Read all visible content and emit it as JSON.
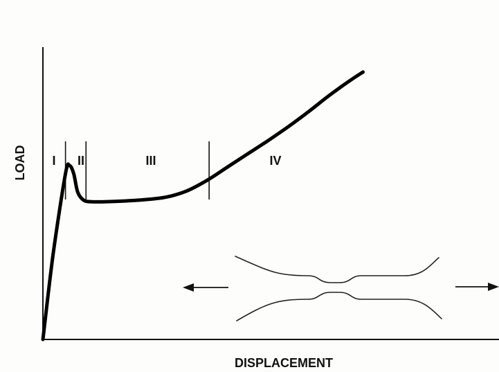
{
  "chart_data": {
    "type": "line",
    "xlabel": "DISPLACEMENT",
    "ylabel": "LOAD",
    "xlim": [
      0,
      100
    ],
    "ylim": [
      0,
      100
    ],
    "ticks": false,
    "grid": false,
    "series": [
      {
        "points": [
          [
            0,
            0
          ],
          [
            2.5,
            32
          ],
          [
            5.5,
            62
          ],
          [
            6.5,
            65
          ],
          [
            7.5,
            62
          ],
          [
            8.5,
            55
          ],
          [
            10,
            52
          ],
          [
            12,
            51.5
          ],
          [
            15,
            51.5
          ],
          [
            20,
            51.8
          ],
          [
            25,
            52.3
          ],
          [
            30,
            53.2
          ],
          [
            35,
            55.5
          ],
          [
            40,
            59.5
          ],
          [
            45,
            64.5
          ],
          [
            50,
            69.5
          ],
          [
            55,
            74.5
          ],
          [
            60,
            79.8
          ],
          [
            65,
            85.5
          ],
          [
            70,
            91.5
          ],
          [
            75,
            97
          ],
          [
            78,
            100
          ]
        ],
        "color": "#000000"
      }
    ],
    "regions": [
      {
        "label": "I",
        "x_start": 0,
        "x_end": 5.5
      },
      {
        "label": "II",
        "x_start": 5.5,
        "x_end": 10.5
      },
      {
        "label": "III",
        "x_start": 10.5,
        "x_end": 40.5
      },
      {
        "label": "IV",
        "x_start": 40.5,
        "x_end": 78
      }
    ],
    "inset": {
      "description_icon": "specimen-necking-sketch",
      "arrows": [
        "left-arrow",
        "right-arrow"
      ]
    }
  }
}
